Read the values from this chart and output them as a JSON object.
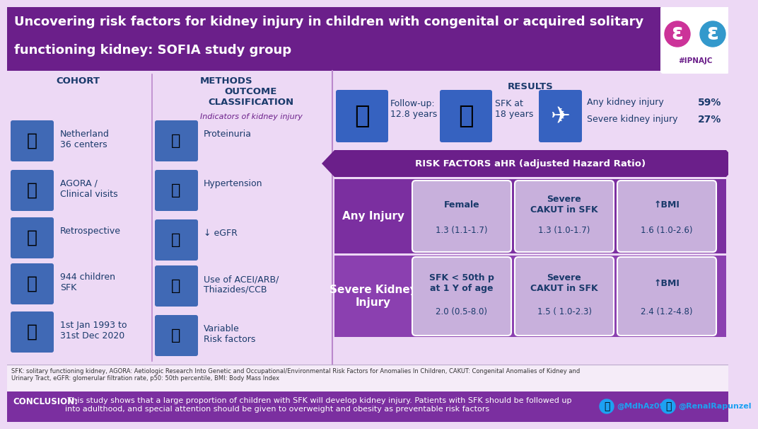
{
  "title_line1": "Uncovering risk factors for kidney injury in children with congenital or acquired solitary",
  "title_line2": "functioning kidney: SOFIA study group",
  "title_color": "#FFFFFF",
  "title_bg": "#6B1F8A",
  "hashtag": "#IPNAJC",
  "bg_color": "#EDD9F5",
  "purple_dark": "#6B1F8A",
  "purple_medium": "#8B3FA8",
  "purple_row1": "#7B2FA0",
  "purple_row2": "#8B40B0",
  "box_bg": "#C8B4DC",
  "blue_dark": "#1A3A6B",
  "white": "#FFFFFF",
  "footnote_bg": "#F0E0F8",
  "conclusion_bg": "#7B2FA0",
  "cohort_title": "COHORT",
  "methods_title": "METHODS",
  "outcome_title": "OUTCOME\nCLASSIFICATION",
  "results_title": "RESULTS",
  "cohort_items": [
    "Netherland\n36 centers",
    "AGORA /\nClinical visits",
    "Retrospective",
    "944 children\nSFK",
    "1st Jan 1993 to\n31st Dec 2020"
  ],
  "outcome_items": [
    "Proteinuria",
    "Hypertension",
    "↓ eGFR",
    "Use of ACEI/ARB/\nThiazides/CCB",
    "Variable\nRisk factors"
  ],
  "outcome_subtitle": "Indicators of kidney injury",
  "results_followup": "Follow-up:\n12.8 years",
  "results_sfk": "SFK at\n18 years",
  "results_any": "Any kidney injury",
  "results_any_pct": "59%",
  "results_severe": "Severe kidney injury",
  "results_severe_pct": "27%",
  "risk_header": "RISK FACTORS aHR (adjusted Hazard Ratio)",
  "any_injury_label": "Any Injury",
  "any_injury_factors": [
    {
      "name": "Female",
      "value": "1.3 (1.1-1.7)"
    },
    {
      "name": "Severe\nCAKUT in SFK",
      "value": "1.3 (1.0-1.7)"
    },
    {
      "name": "↑BMI",
      "value": "1.6 (1.0-2.6)"
    }
  ],
  "severe_injury_label": "Severe Kidney\nInjury",
  "severe_injury_factors": [
    {
      "name": "SFK < 50th p\nat 1 Y of age",
      "value": "2.0 (0.5-8.0)"
    },
    {
      "name": "Severe\nCAKUT in SFK",
      "value": "1.5 ( 1.0-2.3)"
    },
    {
      "name": "↑BMI",
      "value": "2.4 (1.2-4.8)"
    }
  ],
  "footnote": "SFK: solitary functioning kidney, AGORA: Aetiologic Research Into Genetic and Occupational/Environmental Risk Factors for Anomalies In Children, CAKUT: Congenital Anomalies of Kidney and\nUrinary Tract, eGFR: glomerular filtration rate, p50: 50th percentile, BMI: Body Mass Index",
  "conclusion_label": "CONCLUSION:",
  "conclusion_text": " This study shows that a large proportion of children with SFK will develop kidney injury. Patients with SFK should be followed up\ninto adulthood, and special attention should be given to overweight and obesity as preventable risk factors",
  "twitter1": "@MdhAz09",
  "twitter2": "@RenalRapunzel"
}
